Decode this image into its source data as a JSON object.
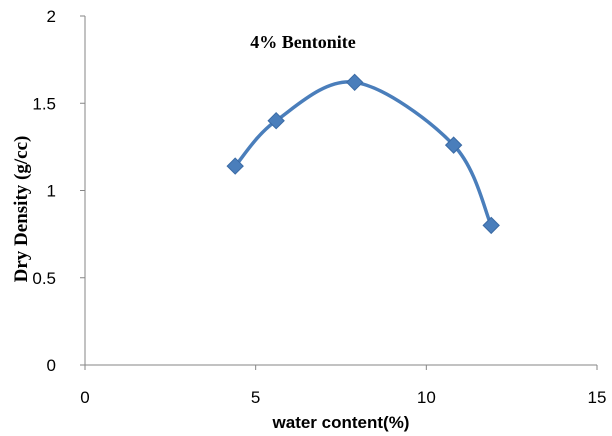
{
  "chart_data": {
    "type": "line",
    "title": "4% Bentonite",
    "xlabel": "water content(%)",
    "ylabel": "Dry Density (g/cc)",
    "xlim": [
      0,
      15
    ],
    "ylim": [
      0,
      2
    ],
    "x_ticks": [
      0,
      5,
      10,
      15
    ],
    "y_ticks": [
      0,
      0.5,
      1,
      1.5,
      2
    ],
    "x_tick_labels": [
      "0",
      "5",
      "10",
      "15"
    ],
    "y_tick_labels": [
      "0",
      "0.5",
      "1",
      "1.5",
      "2"
    ],
    "grid": false,
    "legend": "none",
    "smooth": true,
    "marker": "diamond",
    "color": "#4a7ebb",
    "series": [
      {
        "x": [
          4.4,
          5.6,
          7.9,
          10.8,
          11.9
        ],
        "y": [
          1.14,
          1.4,
          1.62,
          1.26,
          0.8
        ]
      }
    ]
  }
}
